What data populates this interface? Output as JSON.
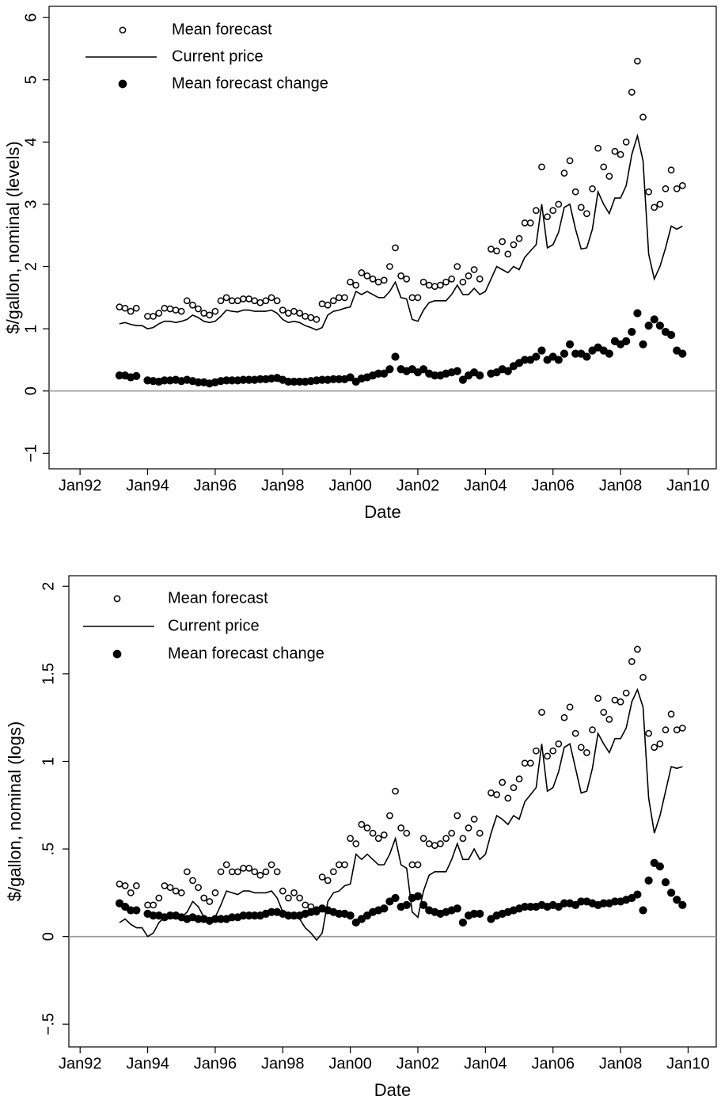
{
  "chart_data": [
    {
      "type": "line",
      "y_label": "$/gallon, nominal (levels)",
      "x_label": "Date",
      "xlim": [
        "1991-02",
        "2010-11"
      ],
      "ylim": [
        -1.25,
        6.18
      ],
      "xticks": [
        {
          "value": "1992-01",
          "label": "Jan92"
        },
        {
          "value": "1994-01",
          "label": "Jan94"
        },
        {
          "value": "1996-01",
          "label": "Jan96"
        },
        {
          "value": "1998-01",
          "label": "Jan98"
        },
        {
          "value": "2000-01",
          "label": "Jan00"
        },
        {
          "value": "2002-01",
          "label": "Jan02"
        },
        {
          "value": "2004-01",
          "label": "Jan04"
        },
        {
          "value": "2006-01",
          "label": "Jan06"
        },
        {
          "value": "2008-01",
          "label": "Jan08"
        },
        {
          "value": "2010-01",
          "label": "Jan10"
        }
      ],
      "yticks": [
        {
          "value": -1,
          "label": "−1"
        },
        0,
        1,
        2,
        3,
        4,
        5,
        6
      ],
      "hline": 0,
      "hline_color": "#999999",
      "x": [
        "1993-03",
        "1993-05",
        "1993-07",
        "1993-09",
        "1993-11",
        "1994-01",
        "1994-03",
        "1994-05",
        "1994-07",
        "1994-09",
        "1994-11",
        "1995-01",
        "1995-03",
        "1995-05",
        "1995-07",
        "1995-09",
        "1995-11",
        "1996-01",
        "1996-03",
        "1996-05",
        "1996-07",
        "1996-09",
        "1996-11",
        "1997-01",
        "1997-03",
        "1997-05",
        "1997-07",
        "1997-09",
        "1997-11",
        "1998-01",
        "1998-03",
        "1998-05",
        "1998-07",
        "1998-09",
        "1998-11",
        "1999-01",
        "1999-03",
        "1999-05",
        "1999-07",
        "1999-09",
        "1999-11",
        "2000-01",
        "2000-03",
        "2000-05",
        "2000-07",
        "2000-09",
        "2000-11",
        "2001-01",
        "2001-03",
        "2001-05",
        "2001-07",
        "2001-09",
        "2001-11",
        "2002-01",
        "2002-03",
        "2002-05",
        "2002-07",
        "2002-09",
        "2002-11",
        "2003-01",
        "2003-03",
        "2003-05",
        "2003-07",
        "2003-09",
        "2003-11",
        "2004-01",
        "2004-03",
        "2004-05",
        "2004-07",
        "2004-09",
        "2004-11",
        "2005-01",
        "2005-03",
        "2005-05",
        "2005-07",
        "2005-09",
        "2005-11",
        "2006-01",
        "2006-03",
        "2006-05",
        "2006-07",
        "2006-09",
        "2006-11",
        "2007-01",
        "2007-03",
        "2007-05",
        "2007-07",
        "2007-09",
        "2007-11",
        "2008-01",
        "2008-03",
        "2008-05",
        "2008-07",
        "2008-09",
        "2008-11",
        "2009-01",
        "2009-03",
        "2009-05",
        "2009-07",
        "2009-09",
        "2009-11"
      ],
      "series": [
        {
          "name": "Mean forecast",
          "style": "open-circle",
          "color": "#000000",
          "values": [
            1.35,
            1.33,
            1.28,
            1.33,
            null,
            1.2,
            1.2,
            1.25,
            1.33,
            1.32,
            1.3,
            1.28,
            1.45,
            1.38,
            1.32,
            1.25,
            1.22,
            1.28,
            1.45,
            1.5,
            1.45,
            1.45,
            1.48,
            1.48,
            1.45,
            1.42,
            1.45,
            1.5,
            1.45,
            1.3,
            1.25,
            1.28,
            1.25,
            1.2,
            1.18,
            1.15,
            1.4,
            1.38,
            1.45,
            1.5,
            1.5,
            1.75,
            1.7,
            1.9,
            1.85,
            1.8,
            1.75,
            1.78,
            2.0,
            2.3,
            1.85,
            1.8,
            1.5,
            1.5,
            1.75,
            1.7,
            1.68,
            1.7,
            1.75,
            1.8,
            2.0,
            1.75,
            1.85,
            1.95,
            1.8,
            null,
            2.28,
            2.25,
            2.4,
            2.2,
            2.35,
            2.45,
            2.7,
            2.7,
            2.9,
            3.6,
            2.8,
            2.9,
            3.0,
            3.5,
            3.7,
            3.2,
            2.95,
            2.85,
            3.25,
            3.9,
            3.6,
            3.45,
            3.85,
            3.8,
            4.0,
            4.8,
            5.3,
            4.4,
            3.2,
            2.95,
            3.0,
            3.25,
            3.55,
            3.25,
            3.3
          ]
        },
        {
          "name": "Current price",
          "style": "line",
          "color": "#000000",
          "values": [
            1.08,
            1.1,
            1.07,
            1.05,
            1.05,
            1.0,
            1.02,
            1.08,
            1.12,
            1.12,
            1.1,
            1.12,
            1.15,
            1.22,
            1.18,
            1.12,
            1.1,
            1.12,
            1.2,
            1.3,
            1.28,
            1.27,
            1.3,
            1.3,
            1.28,
            1.28,
            1.28,
            1.3,
            1.25,
            1.15,
            1.1,
            1.12,
            1.1,
            1.05,
            1.02,
            0.98,
            1.02,
            1.22,
            1.28,
            1.3,
            1.33,
            1.35,
            1.6,
            1.55,
            1.6,
            1.55,
            1.5,
            1.5,
            1.6,
            1.75,
            1.5,
            1.48,
            1.15,
            1.12,
            1.3,
            1.42,
            1.45,
            1.45,
            1.45,
            1.55,
            1.7,
            1.55,
            1.55,
            1.65,
            1.55,
            1.6,
            1.8,
            2.0,
            1.95,
            1.9,
            2.0,
            1.95,
            2.15,
            2.25,
            2.35,
            3.0,
            2.3,
            2.35,
            2.55,
            2.95,
            3.0,
            2.6,
            2.28,
            2.3,
            2.6,
            3.2,
            3.0,
            2.85,
            3.1,
            3.1,
            3.3,
            3.8,
            4.1,
            3.7,
            2.2,
            1.8,
            2.0,
            2.3,
            2.65,
            2.6,
            2.65
          ]
        },
        {
          "name": "Mean forecast change",
          "style": "filled-circle",
          "color": "#000000",
          "values": [
            0.25,
            0.25,
            0.22,
            0.24,
            null,
            0.17,
            0.16,
            0.15,
            0.17,
            0.17,
            0.18,
            0.16,
            0.18,
            0.16,
            0.14,
            0.14,
            0.12,
            0.14,
            0.16,
            0.17,
            0.17,
            0.17,
            0.18,
            0.18,
            0.18,
            0.19,
            0.19,
            0.2,
            0.21,
            0.18,
            0.15,
            0.15,
            0.15,
            0.15,
            0.16,
            0.17,
            0.18,
            0.18,
            0.19,
            0.19,
            0.19,
            0.22,
            0.15,
            0.2,
            0.22,
            0.25,
            0.28,
            0.28,
            0.35,
            0.55,
            0.35,
            0.32,
            0.35,
            0.3,
            0.35,
            0.28,
            0.25,
            0.25,
            0.28,
            0.3,
            0.32,
            0.18,
            0.25,
            0.3,
            0.25,
            null,
            0.28,
            0.3,
            0.35,
            0.32,
            0.4,
            0.45,
            0.5,
            0.5,
            0.55,
            0.65,
            0.5,
            0.55,
            0.5,
            0.6,
            0.75,
            0.6,
            0.6,
            0.55,
            0.65,
            0.7,
            0.65,
            0.6,
            0.8,
            0.75,
            0.8,
            0.95,
            1.25,
            0.75,
            1.05,
            1.15,
            1.05,
            0.95,
            0.9,
            0.65,
            0.6
          ]
        }
      ]
    },
    {
      "type": "line",
      "y_label": "$/gallon, nominal (logs)",
      "x_label": "Date",
      "xlim": [
        "1991-09",
        "2010-11"
      ],
      "ylim": [
        -0.63,
        2.06
      ],
      "xticks": [
        {
          "value": "1992-01",
          "label": "Jan92"
        },
        {
          "value": "1994-01",
          "label": "Jan94"
        },
        {
          "value": "1996-01",
          "label": "Jan96"
        },
        {
          "value": "1998-01",
          "label": "Jan98"
        },
        {
          "value": "2000-01",
          "label": "Jan00"
        },
        {
          "value": "2002-01",
          "label": "Jan02"
        },
        {
          "value": "2004-01",
          "label": "Jan04"
        },
        {
          "value": "2006-01",
          "label": "Jan06"
        },
        {
          "value": "2008-01",
          "label": "Jan08"
        },
        {
          "value": "2010-01",
          "label": "Jan10"
        }
      ],
      "yticks": [
        {
          "value": -0.5,
          "label": "−.5"
        },
        0,
        {
          "value": 0.5,
          "label": ".5"
        },
        1,
        1.5,
        2
      ],
      "hline": 0,
      "hline_color": "#999999",
      "x": [
        "1993-03",
        "1993-05",
        "1993-07",
        "1993-09",
        "1993-11",
        "1994-01",
        "1994-03",
        "1994-05",
        "1994-07",
        "1994-09",
        "1994-11",
        "1995-01",
        "1995-03",
        "1995-05",
        "1995-07",
        "1995-09",
        "1995-11",
        "1996-01",
        "1996-03",
        "1996-05",
        "1996-07",
        "1996-09",
        "1996-11",
        "1997-01",
        "1997-03",
        "1997-05",
        "1997-07",
        "1997-09",
        "1997-11",
        "1998-01",
        "1998-03",
        "1998-05",
        "1998-07",
        "1998-09",
        "1998-11",
        "1999-01",
        "1999-03",
        "1999-05",
        "1999-07",
        "1999-09",
        "1999-11",
        "2000-01",
        "2000-03",
        "2000-05",
        "2000-07",
        "2000-09",
        "2000-11",
        "2001-01",
        "2001-03",
        "2001-05",
        "2001-07",
        "2001-09",
        "2001-11",
        "2002-01",
        "2002-03",
        "2002-05",
        "2002-07",
        "2002-09",
        "2002-11",
        "2003-01",
        "2003-03",
        "2003-05",
        "2003-07",
        "2003-09",
        "2003-11",
        "2004-01",
        "2004-03",
        "2004-05",
        "2004-07",
        "2004-09",
        "2004-11",
        "2005-01",
        "2005-03",
        "2005-05",
        "2005-07",
        "2005-09",
        "2005-11",
        "2006-01",
        "2006-03",
        "2006-05",
        "2006-07",
        "2006-09",
        "2006-11",
        "2007-01",
        "2007-03",
        "2007-05",
        "2007-07",
        "2007-09",
        "2007-11",
        "2008-01",
        "2008-03",
        "2008-05",
        "2008-07",
        "2008-09",
        "2008-11",
        "2009-01",
        "2009-03",
        "2009-05",
        "2009-07",
        "2009-09",
        "2009-11"
      ],
      "series": [
        {
          "name": "Mean forecast",
          "style": "open-circle",
          "color": "#000000",
          "values": [
            0.3,
            0.29,
            0.25,
            0.29,
            null,
            0.18,
            0.18,
            0.22,
            0.29,
            0.28,
            0.26,
            0.25,
            0.37,
            0.32,
            0.28,
            0.22,
            0.2,
            0.25,
            0.37,
            0.41,
            0.37,
            0.37,
            0.39,
            0.39,
            0.37,
            0.35,
            0.37,
            0.41,
            0.37,
            0.26,
            0.22,
            0.25,
            0.22,
            0.18,
            0.17,
            0.14,
            0.34,
            0.32,
            0.37,
            0.41,
            0.41,
            0.56,
            0.53,
            0.64,
            0.62,
            0.59,
            0.56,
            0.58,
            0.69,
            0.83,
            0.62,
            0.59,
            0.41,
            0.41,
            0.56,
            0.53,
            0.52,
            0.53,
            0.56,
            0.59,
            0.69,
            0.56,
            0.62,
            0.67,
            0.59,
            null,
            0.82,
            0.81,
            0.88,
            0.79,
            0.85,
            0.9,
            0.99,
            0.99,
            1.06,
            1.28,
            1.03,
            1.06,
            1.1,
            1.25,
            1.31,
            1.16,
            1.08,
            1.05,
            1.18,
            1.36,
            1.28,
            1.24,
            1.35,
            1.34,
            1.39,
            1.57,
            1.64,
            1.48,
            1.16,
            1.08,
            1.1,
            1.18,
            1.27,
            1.18,
            1.19
          ]
        },
        {
          "name": "Current price",
          "style": "line",
          "color": "#000000",
          "values": [
            0.08,
            0.1,
            0.07,
            0.05,
            0.05,
            0.0,
            0.02,
            0.08,
            0.11,
            0.11,
            0.1,
            0.11,
            0.14,
            0.2,
            0.17,
            0.11,
            0.1,
            0.11,
            0.18,
            0.26,
            0.25,
            0.24,
            0.26,
            0.26,
            0.25,
            0.25,
            0.25,
            0.26,
            0.22,
            0.14,
            0.1,
            0.11,
            0.1,
            0.05,
            0.02,
            -0.02,
            0.02,
            0.2,
            0.25,
            0.26,
            0.29,
            0.3,
            0.47,
            0.44,
            0.47,
            0.44,
            0.41,
            0.41,
            0.47,
            0.56,
            0.41,
            0.39,
            0.14,
            0.11,
            0.26,
            0.35,
            0.37,
            0.37,
            0.37,
            0.44,
            0.53,
            0.44,
            0.44,
            0.5,
            0.44,
            0.47,
            0.59,
            0.69,
            0.67,
            0.64,
            0.69,
            0.67,
            0.77,
            0.81,
            0.85,
            1.1,
            0.83,
            0.85,
            0.94,
            1.08,
            1.1,
            0.96,
            0.82,
            0.83,
            0.96,
            1.16,
            1.1,
            1.05,
            1.13,
            1.13,
            1.19,
            1.34,
            1.41,
            1.31,
            0.79,
            0.59,
            0.69,
            0.83,
            0.97,
            0.96,
            0.97
          ]
        },
        {
          "name": "Mean forecast change",
          "style": "filled-circle",
          "color": "#000000",
          "values": [
            0.19,
            0.17,
            0.15,
            0.15,
            null,
            0.13,
            0.12,
            0.12,
            0.11,
            0.12,
            0.12,
            0.11,
            0.1,
            0.11,
            0.1,
            0.1,
            0.09,
            0.1,
            0.1,
            0.1,
            0.11,
            0.11,
            0.12,
            0.12,
            0.12,
            0.12,
            0.13,
            0.14,
            0.14,
            0.13,
            0.12,
            0.12,
            0.12,
            0.13,
            0.14,
            0.15,
            0.16,
            0.15,
            0.14,
            0.13,
            0.13,
            0.12,
            0.08,
            0.1,
            0.12,
            0.14,
            0.15,
            0.16,
            0.2,
            0.22,
            0.17,
            0.18,
            0.22,
            0.23,
            0.18,
            0.15,
            0.14,
            0.13,
            0.14,
            0.15,
            0.16,
            0.08,
            0.12,
            0.13,
            0.13,
            null,
            0.1,
            0.12,
            0.13,
            0.14,
            0.15,
            0.16,
            0.17,
            0.17,
            0.17,
            0.18,
            0.17,
            0.18,
            0.17,
            0.19,
            0.19,
            0.18,
            0.2,
            0.2,
            0.19,
            0.18,
            0.19,
            0.19,
            0.2,
            0.2,
            0.21,
            0.22,
            0.24,
            0.15,
            0.32,
            0.42,
            0.4,
            0.31,
            0.25,
            0.21,
            0.18
          ]
        }
      ]
    }
  ]
}
